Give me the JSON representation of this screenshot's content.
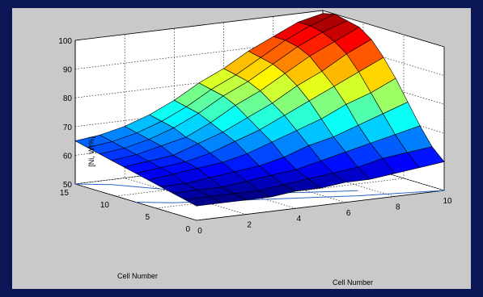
{
  "chart_data": {
    "type": "surface3d",
    "title": "",
    "xlabel": "Cell Number",
    "ylabel": "Cell Number",
    "zlabel": "[Ni, Wt%]",
    "x_ticks": [
      "0",
      "2",
      "4",
      "6",
      "8",
      "10"
    ],
    "y_ticks": [
      "0",
      "5",
      "10",
      "15"
    ],
    "z_ticks": [
      "50",
      "60",
      "70",
      "80",
      "90",
      "100"
    ],
    "xlim": [
      0,
      10
    ],
    "ylim": [
      0,
      15
    ],
    "zlim": [
      50,
      100
    ],
    "grid": true,
    "colormap": "jet",
    "x": [
      0,
      1,
      2,
      3,
      4,
      5,
      6,
      7,
      8,
      9,
      10
    ],
    "y": [
      0,
      1.5,
      3,
      4.5,
      6,
      7.5,
      9,
      10.5,
      12,
      13.5,
      15
    ],
    "z": [
      [
        55,
        55,
        55,
        55,
        56,
        56,
        57,
        57,
        58,
        59,
        60
      ],
      [
        56,
        56,
        56,
        56,
        57,
        58,
        59,
        60,
        62,
        63,
        64
      ],
      [
        57,
        57,
        57,
        58,
        59,
        60,
        62,
        64,
        66,
        68,
        70
      ],
      [
        58,
        58,
        59,
        60,
        61,
        63,
        66,
        68,
        71,
        74,
        77
      ],
      [
        59,
        60,
        61,
        62,
        64,
        67,
        70,
        73,
        77,
        80,
        84
      ],
      [
        60,
        61,
        62,
        64,
        67,
        70,
        74,
        78,
        82,
        86,
        90
      ],
      [
        61,
        62,
        63,
        66,
        69,
        73,
        77,
        82,
        86,
        91,
        95
      ],
      [
        62,
        63,
        65,
        67,
        71,
        76,
        80,
        85,
        90,
        94,
        98
      ],
      [
        63,
        64,
        66,
        69,
        73,
        78,
        82,
        87,
        92,
        96,
        99
      ],
      [
        64,
        65,
        67,
        70,
        74,
        79,
        83,
        88,
        93,
        97,
        100
      ],
      [
        65,
        66,
        68,
        71,
        75,
        80,
        84,
        89,
        93,
        97,
        99
      ]
    ],
    "contour_levels": [
      55,
      60,
      65
    ]
  }
}
